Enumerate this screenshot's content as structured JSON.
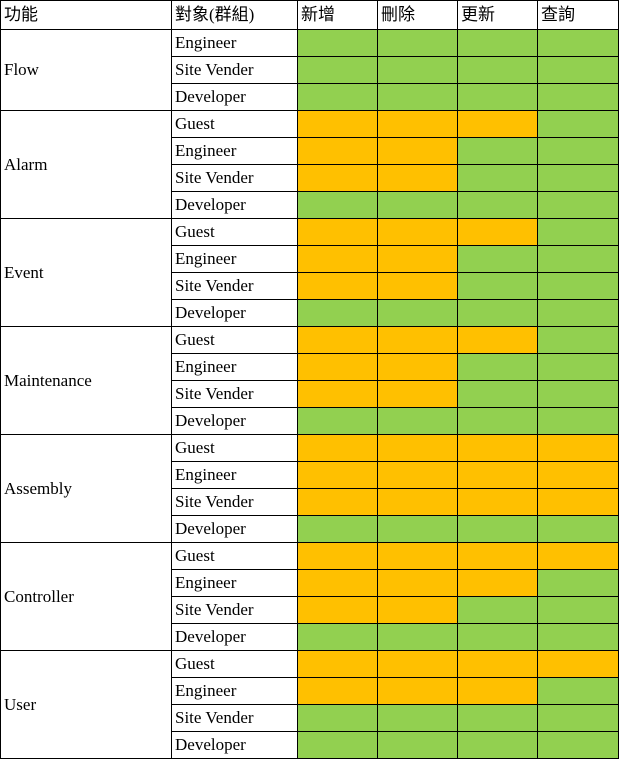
{
  "headers": [
    "功能",
    "對象(群組)",
    "新增",
    "刪除",
    "更新",
    "查詢"
  ],
  "colors": {
    "allowed": "#92d050",
    "denied": "#ffc000"
  },
  "functions": [
    {
      "name": "Flow",
      "rows": [
        {
          "target": "Engineer",
          "perms": [
            "g",
            "g",
            "g",
            "g"
          ]
        },
        {
          "target": "Site Vender",
          "perms": [
            "g",
            "g",
            "g",
            "g"
          ]
        },
        {
          "target": "Developer",
          "perms": [
            "g",
            "g",
            "g",
            "g"
          ]
        }
      ]
    },
    {
      "name": "Alarm",
      "rows": [
        {
          "target": "Guest",
          "perms": [
            "o",
            "o",
            "o",
            "g"
          ]
        },
        {
          "target": "Engineer",
          "perms": [
            "o",
            "o",
            "g",
            "g"
          ]
        },
        {
          "target": "Site Vender",
          "perms": [
            "o",
            "o",
            "g",
            "g"
          ]
        },
        {
          "target": "Developer",
          "perms": [
            "g",
            "g",
            "g",
            "g"
          ]
        }
      ]
    },
    {
      "name": "Event",
      "rows": [
        {
          "target": "Guest",
          "perms": [
            "o",
            "o",
            "o",
            "g"
          ]
        },
        {
          "target": "Engineer",
          "perms": [
            "o",
            "o",
            "g",
            "g"
          ]
        },
        {
          "target": "Site Vender",
          "perms": [
            "o",
            "o",
            "g",
            "g"
          ]
        },
        {
          "target": "Developer",
          "perms": [
            "g",
            "g",
            "g",
            "g"
          ]
        }
      ]
    },
    {
      "name": "Maintenance",
      "rows": [
        {
          "target": "Guest",
          "perms": [
            "o",
            "o",
            "o",
            "g"
          ]
        },
        {
          "target": "Engineer",
          "perms": [
            "o",
            "o",
            "g",
            "g"
          ]
        },
        {
          "target": "Site Vender",
          "perms": [
            "o",
            "o",
            "g",
            "g"
          ]
        },
        {
          "target": "Developer",
          "perms": [
            "g",
            "g",
            "g",
            "g"
          ]
        }
      ]
    },
    {
      "name": "Assembly",
      "rows": [
        {
          "target": "Guest",
          "perms": [
            "o",
            "o",
            "o",
            "o"
          ]
        },
        {
          "target": "Engineer",
          "perms": [
            "o",
            "o",
            "o",
            "o"
          ]
        },
        {
          "target": "Site Vender",
          "perms": [
            "o",
            "o",
            "o",
            "o"
          ]
        },
        {
          "target": "Developer",
          "perms": [
            "g",
            "g",
            "g",
            "g"
          ]
        }
      ]
    },
    {
      "name": "Controller",
      "rows": [
        {
          "target": "Guest",
          "perms": [
            "o",
            "o",
            "o",
            "o"
          ]
        },
        {
          "target": "Engineer",
          "perms": [
            "o",
            "o",
            "o",
            "g"
          ]
        },
        {
          "target": "Site Vender",
          "perms": [
            "o",
            "o",
            "g",
            "g"
          ]
        },
        {
          "target": "Developer",
          "perms": [
            "g",
            "g",
            "g",
            "g"
          ]
        }
      ]
    },
    {
      "name": "User",
      "rows": [
        {
          "target": "Guest",
          "perms": [
            "o",
            "o",
            "o",
            "o"
          ]
        },
        {
          "target": "Engineer",
          "perms": [
            "o",
            "o",
            "o",
            "g"
          ]
        },
        {
          "target": "Site Vender",
          "perms": [
            "g",
            "g",
            "g",
            "g"
          ]
        },
        {
          "target": "Developer",
          "perms": [
            "g",
            "g",
            "g",
            "g"
          ]
        }
      ]
    }
  ]
}
